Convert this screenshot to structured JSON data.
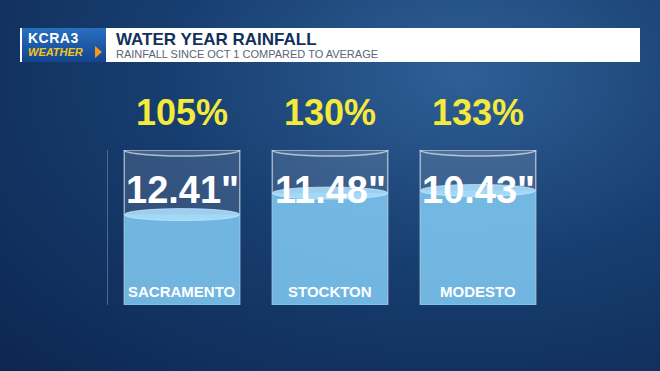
{
  "chart_data": {
    "type": "bar",
    "logo": "KCRA3",
    "logo_sub": "WEATHER",
    "title": "WATER YEAR RAINFALL",
    "subtitle": "RAINFALL SINCE OCT 1 COMPARED TO AVERAGE",
    "categories": [
      "SACRAMENTO",
      "STOCKTON",
      "MODESTO"
    ],
    "values": [
      105,
      130,
      133
    ],
    "value_labels": [
      "105%",
      "130%",
      "133%"
    ],
    "rainfall": [
      12.41,
      11.48,
      10.43
    ],
    "rainfall_labels": [
      "12.41\"",
      "11.48\"",
      "10.43\""
    ],
    "color": "#7cc8f2",
    "ylim": [
      0,
      180
    ],
    "yticks": [],
    "tick_labels": false,
    "data_labels": true
  }
}
